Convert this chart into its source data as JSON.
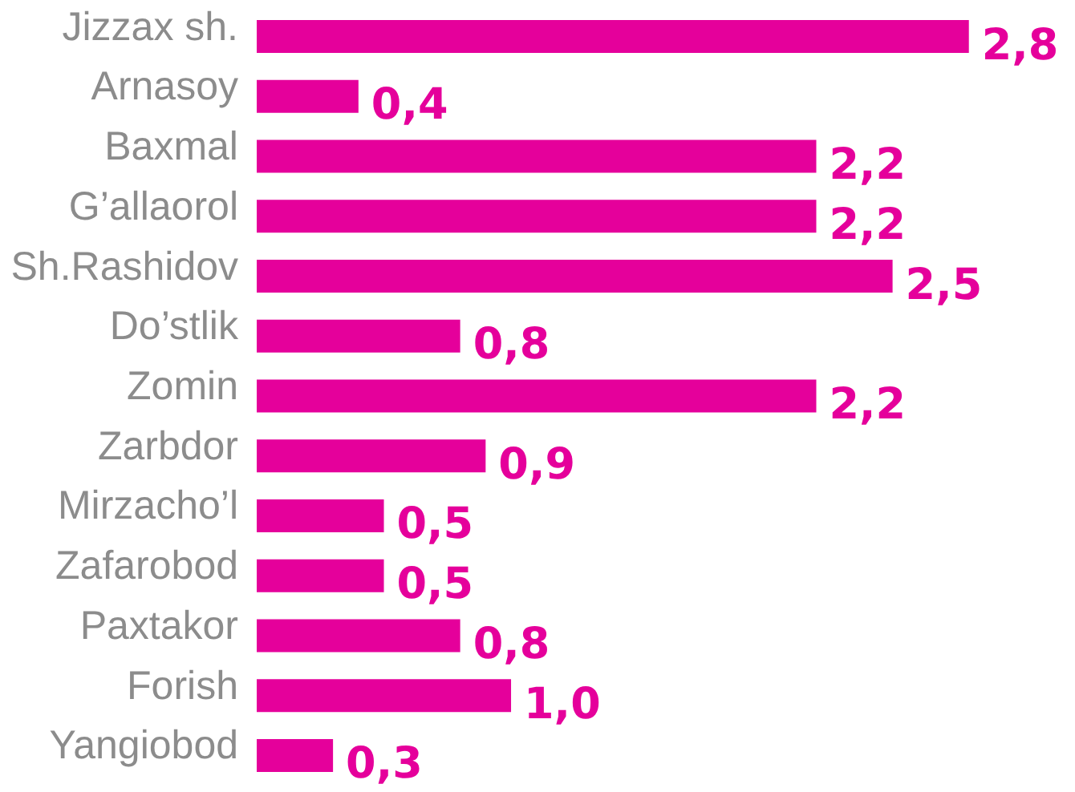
{
  "chart_data": {
    "type": "bar",
    "orientation": "horizontal",
    "categories": [
      "Jizzax sh.",
      "Arnasoy",
      "Baxmal",
      "G’allaorol",
      "Sh.Rashidov",
      "Do’stlik",
      "Zomin",
      "Zarbdor",
      "Mirzacho’l",
      "Zafarobod",
      "Paxtakor",
      "Forish",
      "Yangiobod"
    ],
    "values": [
      2.8,
      0.4,
      2.2,
      2.2,
      2.5,
      0.8,
      2.2,
      0.9,
      0.5,
      0.5,
      0.8,
      1.0,
      0.3
    ],
    "value_labels": [
      "2,8",
      "0,4",
      "2,2",
      "2,2",
      "2,5",
      "0,8",
      "2,2",
      "0,9",
      "0,5",
      "0,5",
      "0,8",
      "1,0",
      "0,3"
    ],
    "color": "#e5009b"
  }
}
